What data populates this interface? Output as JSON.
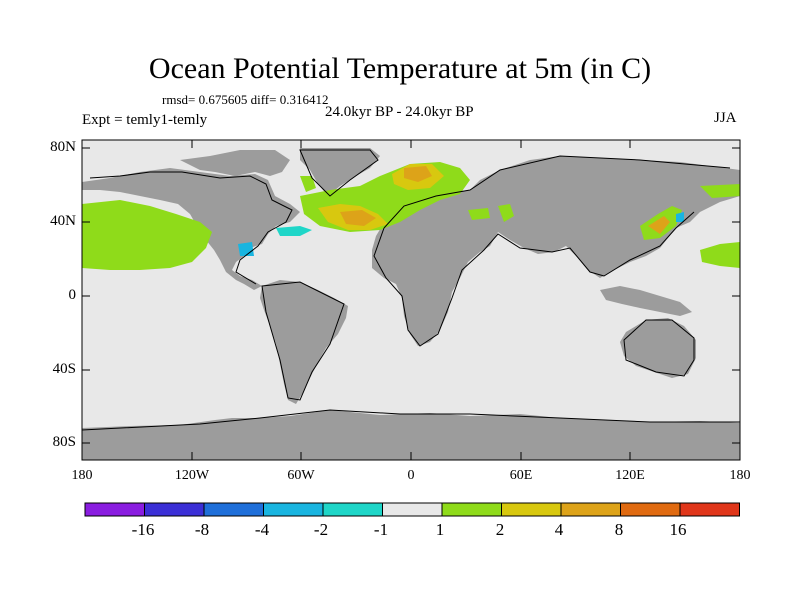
{
  "title": "Ocean Potential Temperature at 5m (in C)",
  "stats": "rmsd= 0.675605 diff= 0.316412",
  "experiment": "Expt = temly1-temly",
  "period": "24.0kyr BP - 24.0kyr BP",
  "season": "JJA",
  "y_axis_labels": [
    "80N",
    "40N",
    "0",
    "40S",
    "80S"
  ],
  "x_axis_labels": [
    "180",
    "120W",
    "60W",
    "0",
    "60E",
    "120E",
    "180"
  ],
  "colorbar": {
    "labels": [
      "-16",
      "-8",
      "-4",
      "-2",
      "-1",
      "1",
      "2",
      "4",
      "8",
      "16"
    ],
    "colors": [
      "#8a1de0",
      "#3b2fd6",
      "#1f6fd9",
      "#19b5e0",
      "#1fd6c8",
      "#e8e8e8",
      "#8fdb1a",
      "#d8c80f",
      "#dda319",
      "#e06a10",
      "#e0361a"
    ]
  },
  "colors": {
    "land": "#9c9c9c",
    "ocean_neutral": "#e8e8e8",
    "anomaly_green": "#8fdb1a",
    "anomaly_yellow": "#d8c80f",
    "anomaly_orange": "#dda319",
    "anomaly_cyan": "#1fd6c8"
  }
}
